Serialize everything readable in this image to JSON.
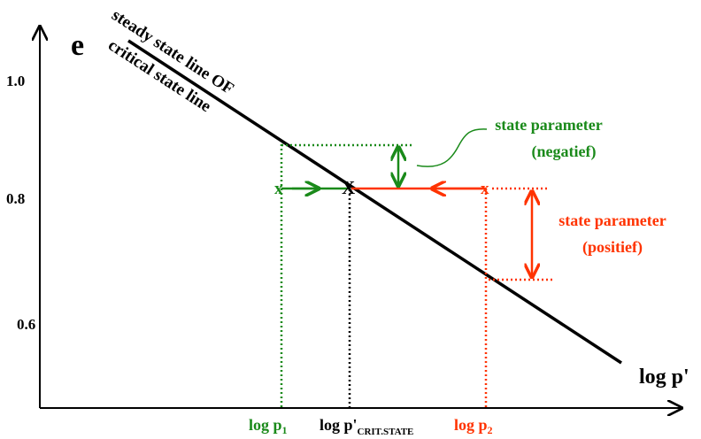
{
  "axes": {
    "y_label": "e",
    "x_label": "log p'",
    "y_ticks": [
      "1.0",
      "0.8",
      "0.6"
    ]
  },
  "lines": {
    "steady_state_label": "steady state line OF",
    "critical_state_label": "critical state line"
  },
  "x_markers": {
    "p1_base": "log p",
    "p1_sub": "1",
    "pcrit_base": "log p'",
    "pcrit_sub": "CRIT.STATE",
    "p2_base": "log p",
    "p2_sub": "2"
  },
  "points": {
    "left": "x",
    "center": "X",
    "right": "x"
  },
  "annotations": {
    "negative_line1": "state parameter",
    "negative_line2": "(negatief)",
    "positive_line1": "state parameter",
    "positive_line2": "(positief)"
  },
  "colors": {
    "green": "#1a8a1a",
    "red": "#ff3300",
    "black": "#000000"
  }
}
